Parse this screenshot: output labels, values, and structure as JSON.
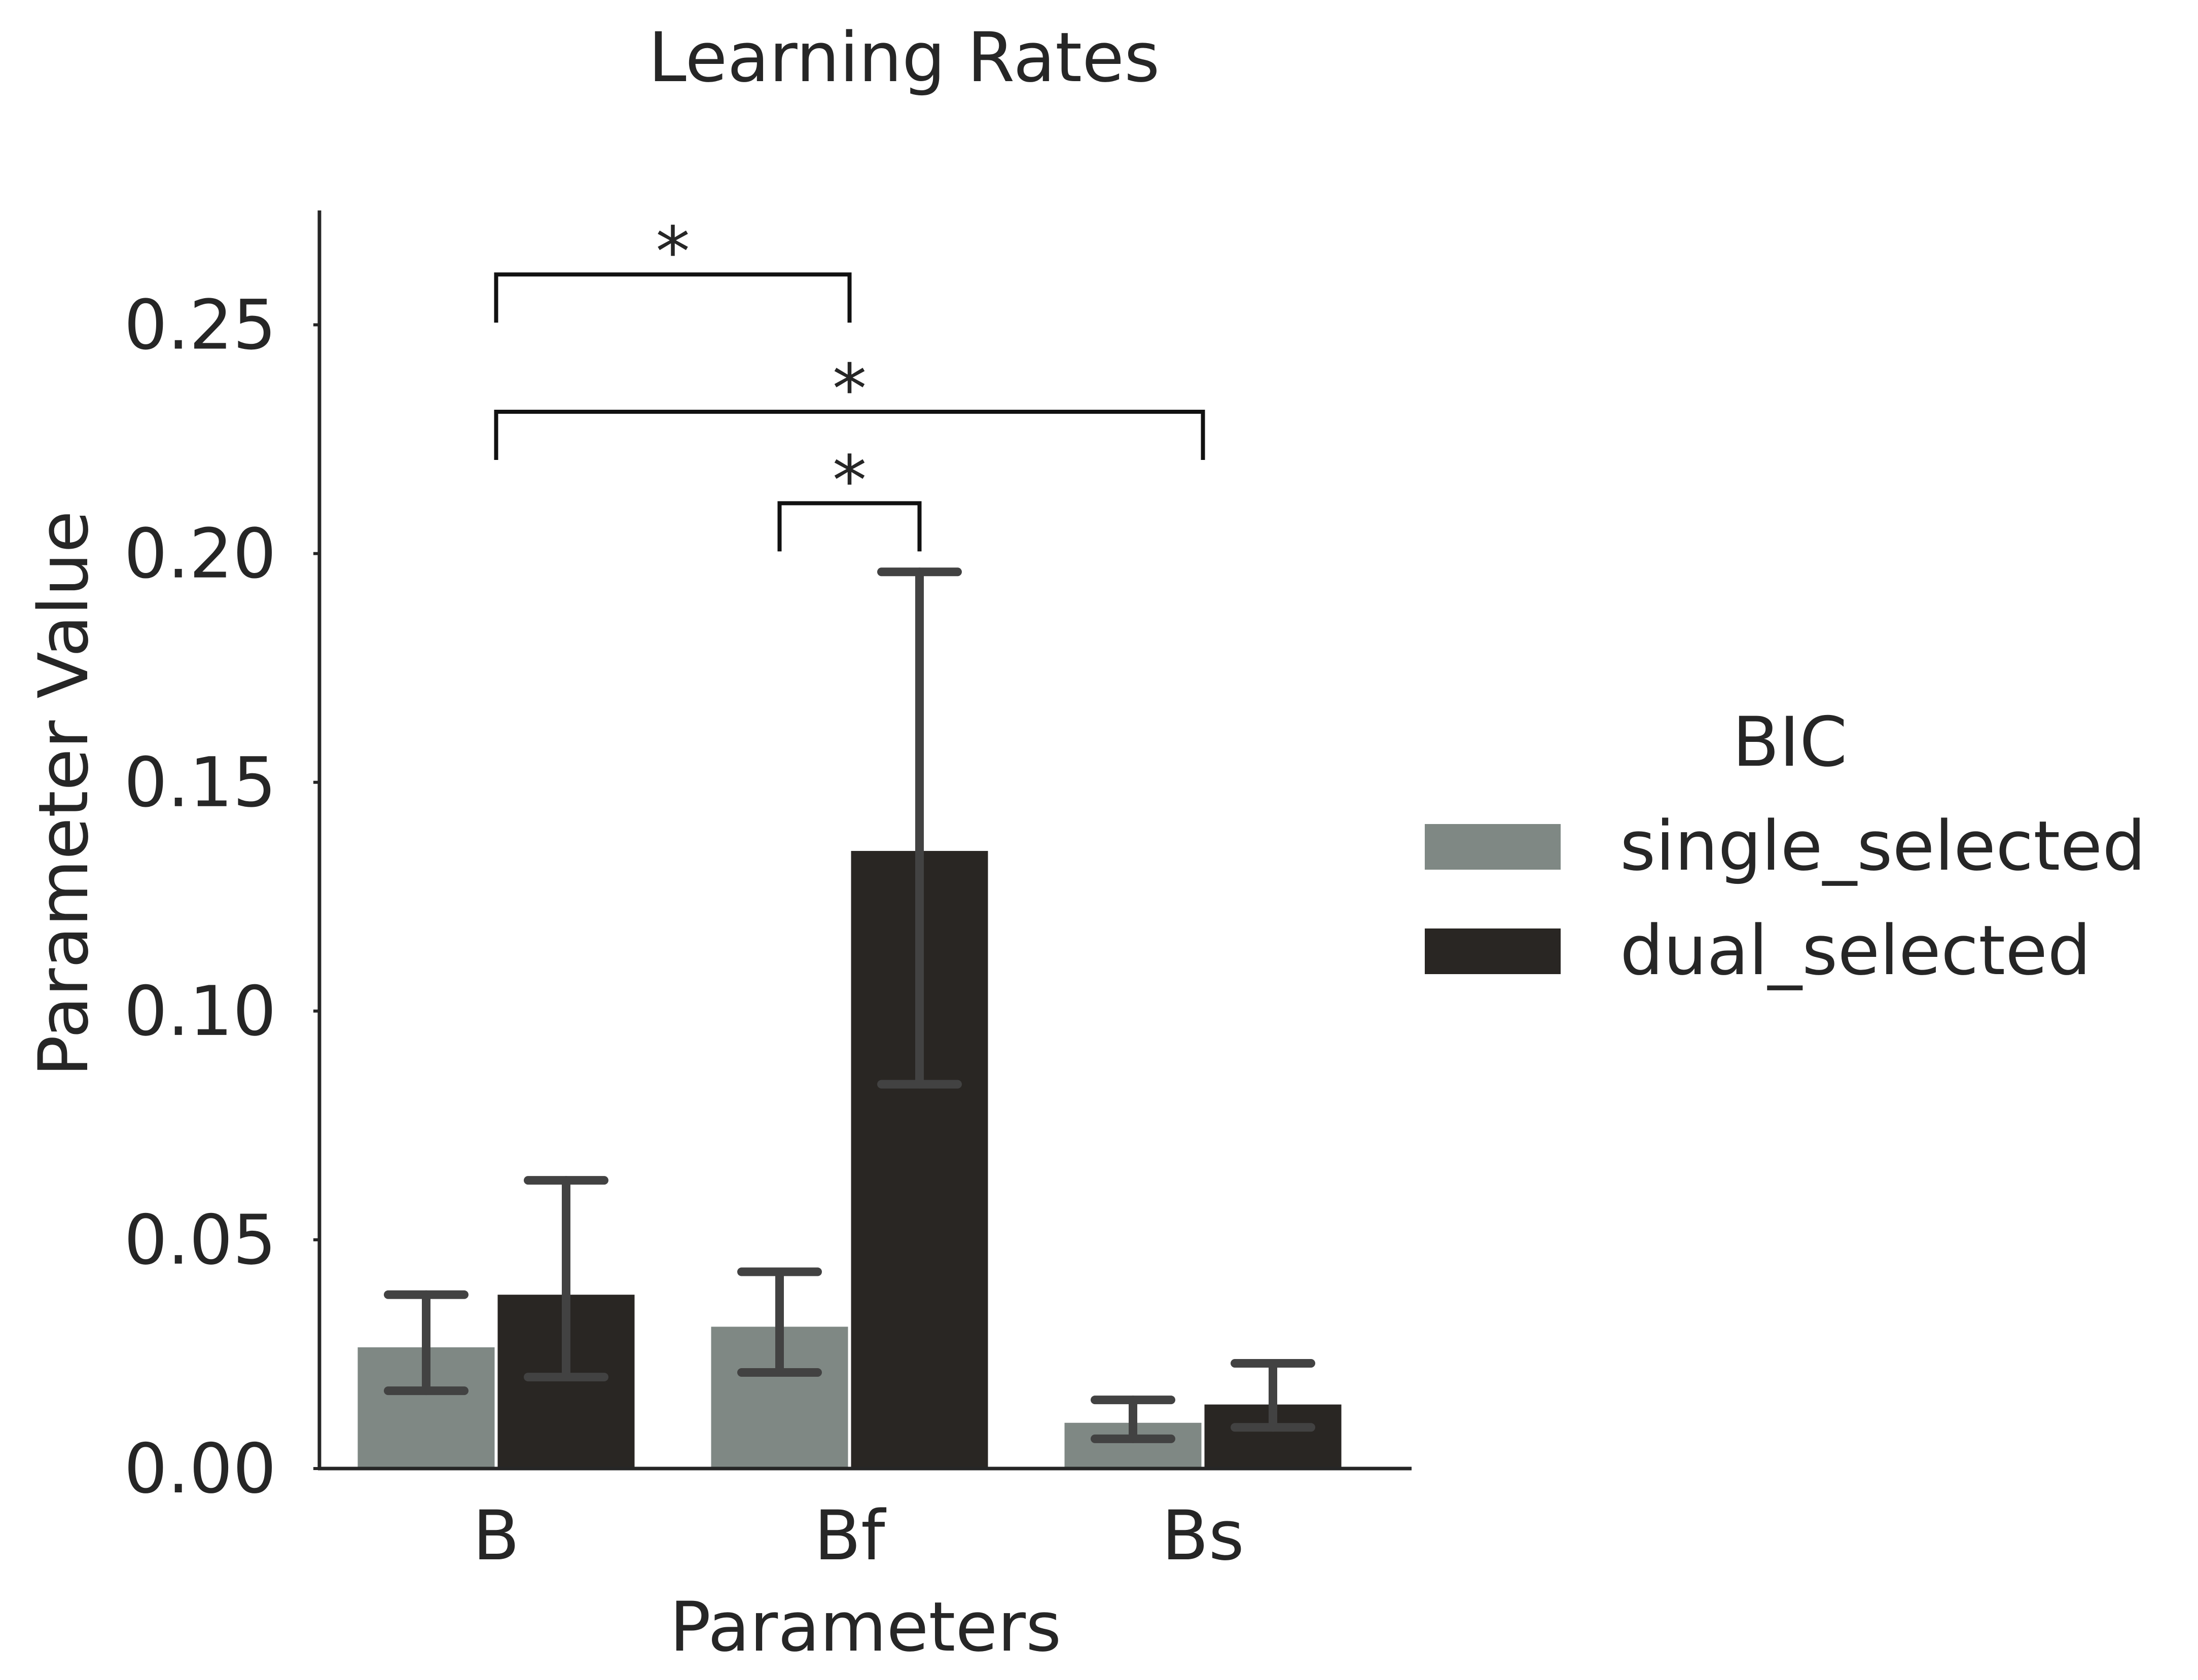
{
  "chart_data": {
    "type": "bar",
    "title": "Learning Rates",
    "xlabel": "Parameters",
    "ylabel": "Parameter Value",
    "categories": [
      "B",
      "Bf",
      "Bs"
    ],
    "ylim": [
      0,
      0.275
    ],
    "yticks": [
      "0.00",
      "0.05",
      "0.10",
      "0.15",
      "0.20",
      "0.25"
    ],
    "grid": false,
    "legend": {
      "title": "BIC",
      "placement": "right"
    },
    "series": [
      {
        "name": "single_selected",
        "color": "#7f8884",
        "values": [
          0.0265,
          0.031,
          0.01
        ],
        "ci_low": [
          0.017,
          0.021,
          0.0065
        ],
        "ci_high": [
          0.038,
          0.043,
          0.015
        ]
      },
      {
        "name": "dual_selected",
        "color": "#292623",
        "values": [
          0.038,
          0.135,
          0.014
        ],
        "ci_low": [
          0.02,
          0.084,
          0.009
        ],
        "ci_high": [
          0.063,
          0.196,
          0.023
        ]
      }
    ],
    "annotations": [
      {
        "label": "*",
        "from": "B",
        "to": "Bf",
        "level": 0.261
      },
      {
        "label": "*",
        "from": "B",
        "to": "Bs",
        "level": 0.231
      },
      {
        "label": "*",
        "from": "Bf.single_selected",
        "to": "Bf.dual_selected",
        "level": 0.211
      }
    ]
  }
}
